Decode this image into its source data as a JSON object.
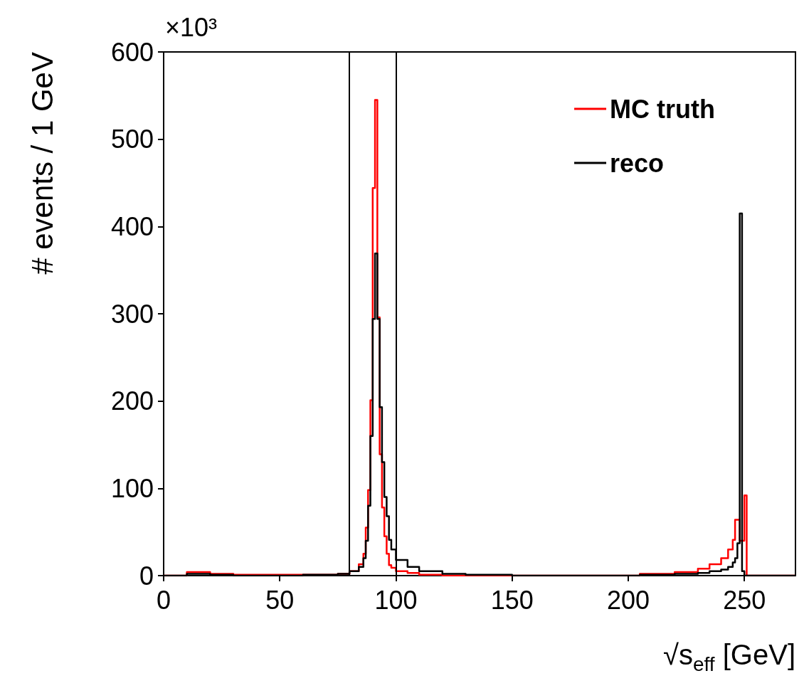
{
  "chart_data": {
    "type": "histogram",
    "xlabel": "√s$_{eff}$ [GeV]",
    "ylabel": "# events / 1 GeV",
    "annotations": [
      "×10³"
    ],
    "bins": [
      0,
      10,
      20,
      30,
      60,
      75,
      80,
      84,
      86,
      87,
      88,
      89,
      90,
      91,
      92,
      93,
      94,
      95,
      96,
      97,
      98,
      100,
      105,
      110,
      120,
      130,
      150,
      205,
      220,
      230,
      235,
      240,
      243,
      245,
      246,
      247,
      248,
      249,
      250,
      251,
      272
    ],
    "series": [
      {
        "name": "MC truth",
        "color": "#ff0000",
        "values": [
          0,
          4,
          2,
          1,
          1,
          2,
          5,
          13,
          25,
          55,
          98,
          201,
          444,
          545,
          296,
          139,
          78,
          45,
          25,
          12,
          9,
          5,
          3,
          1,
          0,
          0,
          0,
          2,
          4,
          8,
          13,
          20,
          30,
          41,
          64,
          64,
          40,
          40,
          92,
          0
        ]
      },
      {
        "name": "reco",
        "color": "#000000",
        "values": [
          0,
          2,
          1,
          0,
          1,
          2,
          5,
          10,
          20,
          40,
          80,
          160,
          294,
          369,
          294,
          193,
          130,
          90,
          68,
          41,
          30,
          18,
          10,
          5,
          2,
          1,
          0,
          1,
          2,
          3,
          5,
          7,
          10,
          15,
          20,
          37,
          415,
          5,
          0,
          0
        ]
      }
    ],
    "xlim": [
      0,
      272
    ],
    "xticks": [
      0,
      50,
      100,
      150,
      200,
      250
    ],
    "ylim": [
      0,
      600
    ],
    "yticks": [
      0,
      100,
      200,
      300,
      400,
      500,
      600
    ],
    "ref_lines": [
      {
        "axis": "x",
        "value": 80,
        "color": "#000000"
      },
      {
        "axis": "x",
        "value": 100,
        "color": "#000000"
      }
    ],
    "legend": "top right",
    "grid": false,
    "line_style": "solid"
  }
}
